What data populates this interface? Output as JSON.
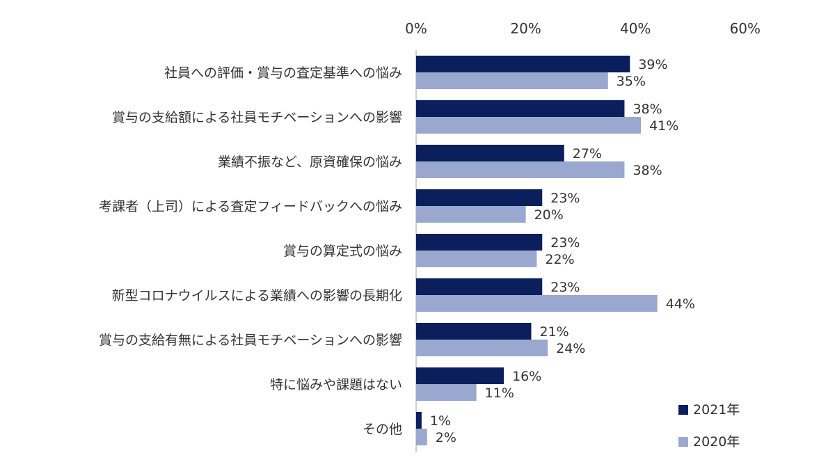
{
  "chart_data": {
    "type": "bar",
    "orientation": "horizontal",
    "title": "",
    "xlabel": "",
    "ylabel": "",
    "xlim": [
      0,
      60
    ],
    "ticks": [
      0,
      20,
      40,
      60
    ],
    "tick_labels": [
      "0%",
      "20%",
      "40%",
      "60%"
    ],
    "axis_position": "top",
    "grid": false,
    "legend_position": "bottom-right",
    "categories": [
      "社員への評価・賞与の査定基準への悩み",
      "賞与の支給額による社員モチベーションへの影響",
      "業績不振など、原資確保の悩み",
      "考課者（上司）による査定フィードバックへの悩み",
      "賞与の算定式の悩み",
      "新型コロナウイルスによる業績への影響の長期化",
      "賞与の支給有無による社員モチベーションへの影響",
      "特に悩みや課題はない",
      "その他"
    ],
    "series": [
      {
        "name": "2021年",
        "color": "#0a1f5c",
        "values": [
          39,
          38,
          27,
          23,
          23,
          23,
          21,
          16,
          1
        ],
        "labels": [
          "39%",
          "38%",
          "27%",
          "23%",
          "23%",
          "23%",
          "21%",
          "16%",
          "1%"
        ]
      },
      {
        "name": "2020年",
        "color": "#9aa8d0",
        "values": [
          35,
          41,
          38,
          20,
          22,
          44,
          24,
          11,
          2
        ],
        "labels": [
          "35%",
          "41%",
          "38%",
          "20%",
          "22%",
          "44%",
          "24%",
          "11%",
          "2%"
        ]
      }
    ]
  }
}
